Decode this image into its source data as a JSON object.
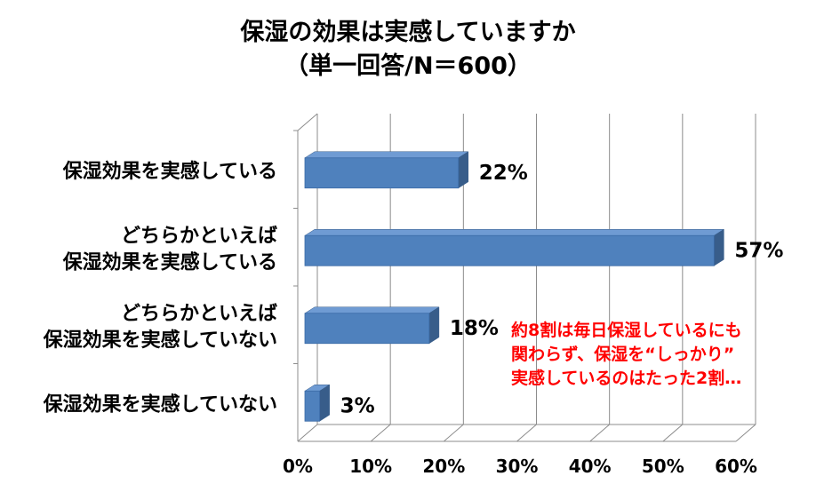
{
  "chart_data": {
    "type": "bar",
    "orientation": "horizontal",
    "style": "3d",
    "title": [
      "保湿の効果は実感していますか",
      "（単一回答/N＝600）"
    ],
    "categories": [
      [
        "保湿効果を実感している"
      ],
      [
        "どちらかといえば",
        "保湿効果を実感している"
      ],
      [
        "どちらかといえば",
        "保湿効果を実感していない"
      ],
      [
        "保湿効果を実感していない"
      ]
    ],
    "values": [
      22,
      57,
      18,
      3
    ],
    "data_labels": [
      "22%",
      "57%",
      "18%",
      "3%"
    ],
    "xlim": [
      0,
      60
    ],
    "xticks": [
      "0%",
      "10%",
      "20%",
      "30%",
      "40%",
      "50%",
      "60%"
    ],
    "grid": true,
    "colors": {
      "bar_front": "#4f81bd",
      "bar_top": "#6f9bd3",
      "bar_side": "#385d8a",
      "grid": "#8c8c8c"
    },
    "annotation": {
      "lines": [
        "約8割は毎日保湿しているにも",
        "関わらず、保湿を“しっかり”",
        "実感しているのはたった2割…"
      ],
      "color": "#ff0000"
    }
  }
}
